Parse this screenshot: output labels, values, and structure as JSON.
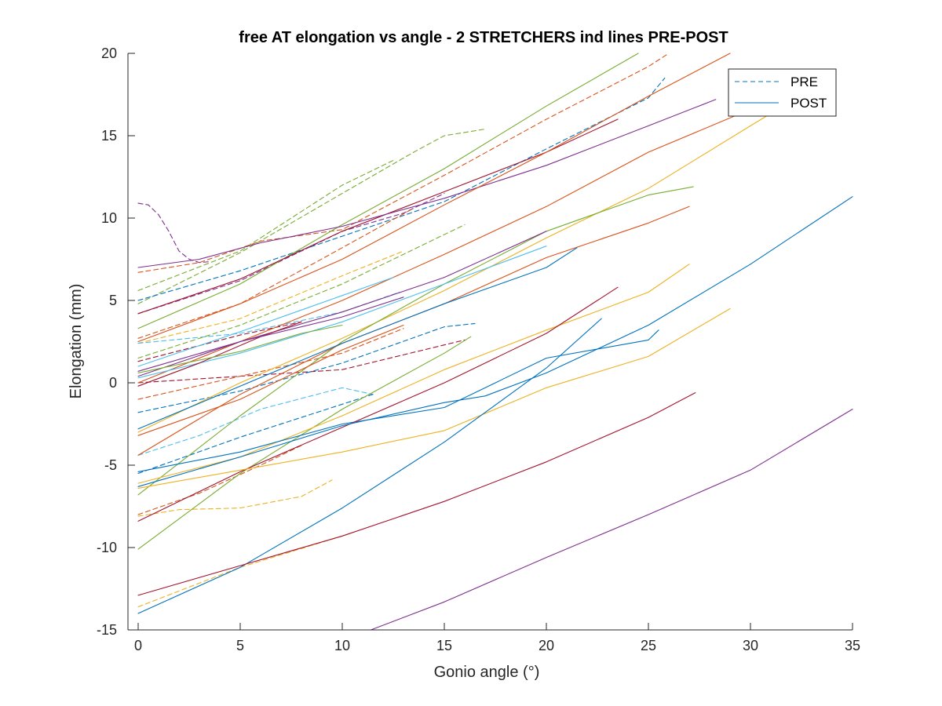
{
  "chart_data": {
    "type": "line",
    "title": "free AT elongation vs angle - 2 STRETCHERS ind lines PRE-POST",
    "xlabel": "Gonio angle (°)",
    "ylabel": "Elongation (mm)",
    "xlim": [
      -0.5,
      35
    ],
    "ylim": [
      -15,
      20
    ],
    "xticks": [
      0,
      5,
      10,
      15,
      20,
      25,
      30,
      35
    ],
    "yticks": [
      -15,
      -10,
      -5,
      0,
      5,
      10,
      15,
      20
    ],
    "grid": false,
    "legend_position": "top-right",
    "legend": [
      {
        "label": "PRE",
        "style": "dashed",
        "color": "#0072BD"
      },
      {
        "label": "POST",
        "style": "solid",
        "color": "#0072BD"
      }
    ],
    "series": [
      {
        "color": "#7E2F8E",
        "style": "dashed",
        "points": [
          [
            0,
            10.9
          ],
          [
            0.5,
            10.8
          ],
          [
            1,
            10.2
          ],
          [
            1.5,
            9.2
          ],
          [
            2,
            8.0
          ],
          [
            2.5,
            7.5
          ],
          [
            3,
            7.3
          ],
          [
            3.5,
            7.35
          ]
        ]
      },
      {
        "color": "#77AC30",
        "style": "dashed",
        "points": [
          [
            0,
            5.6
          ],
          [
            5,
            8.0
          ],
          [
            10,
            12.0
          ],
          [
            12.5,
            13.5
          ]
        ]
      },
      {
        "color": "#77AC30",
        "style": "dashed",
        "points": [
          [
            0,
            4.8
          ],
          [
            5,
            7.9
          ],
          [
            10,
            11.5
          ],
          [
            13.5,
            14.0
          ],
          [
            15,
            15.0
          ],
          [
            17,
            15.4
          ]
        ]
      },
      {
        "color": "#D95319",
        "style": "dashed",
        "points": [
          [
            0,
            6.7
          ],
          [
            3,
            7.3
          ],
          [
            6,
            8.6
          ],
          [
            10,
            9.3
          ],
          [
            15,
            12.6
          ],
          [
            20,
            16.0
          ],
          [
            25,
            19.2
          ],
          [
            26,
            20.0
          ]
        ]
      },
      {
        "color": "#0072BD",
        "style": "dashed",
        "points": [
          [
            0,
            5.0
          ],
          [
            5,
            6.8
          ],
          [
            10,
            8.9
          ],
          [
            15,
            11.0
          ],
          [
            20,
            14.2
          ],
          [
            25,
            17.3
          ],
          [
            25.8,
            18.5
          ]
        ]
      },
      {
        "color": "#7E2F8E",
        "style": "dashed",
        "points": [
          [
            0,
            4.2
          ],
          [
            5,
            6.2
          ],
          [
            10,
            9.2
          ],
          [
            13,
            10.3
          ],
          [
            15,
            11.5
          ]
        ]
      },
      {
        "color": "#D95319",
        "style": "dashed",
        "points": [
          [
            0,
            2.7
          ],
          [
            5,
            4.8
          ],
          [
            10,
            8.2
          ],
          [
            13.5,
            10.6
          ]
        ]
      },
      {
        "color": "#EDB120",
        "style": "dashed",
        "points": [
          [
            0,
            2.4
          ],
          [
            5,
            3.9
          ],
          [
            10,
            6.5
          ],
          [
            13,
            8.0
          ]
        ]
      },
      {
        "color": "#4DBEEE",
        "style": "dashed",
        "points": [
          [
            0,
            2.4
          ],
          [
            5,
            3.0
          ],
          [
            10,
            4.3
          ],
          [
            12.8,
            5.5
          ]
        ]
      },
      {
        "color": "#A2142F",
        "style": "dashed",
        "points": [
          [
            0,
            1.3
          ],
          [
            5,
            2.9
          ],
          [
            8,
            3.7
          ]
        ]
      },
      {
        "color": "#77AC30",
        "style": "dashed",
        "points": [
          [
            0,
            1.5
          ],
          [
            5,
            3.5
          ],
          [
            10,
            6.0
          ],
          [
            15,
            9.0
          ],
          [
            16,
            9.6
          ]
        ]
      },
      {
        "color": "#A2142F",
        "style": "dashed",
        "points": [
          [
            0,
            0.0
          ],
          [
            5,
            0.4
          ],
          [
            10,
            0.8
          ],
          [
            14,
            2.0
          ],
          [
            16,
            2.6
          ]
        ]
      },
      {
        "color": "#0072BD",
        "style": "dashed",
        "points": [
          [
            0,
            -1.8
          ],
          [
            5,
            -0.5
          ],
          [
            10,
            1.2
          ],
          [
            15,
            3.4
          ],
          [
            16.5,
            3.6
          ]
        ]
      },
      {
        "color": "#D95319",
        "style": "dashed",
        "points": [
          [
            0,
            -1.0
          ],
          [
            5,
            0.4
          ],
          [
            10,
            1.8
          ],
          [
            13,
            3.3
          ]
        ]
      },
      {
        "color": "#4DBEEE",
        "style": "dashed",
        "points": [
          [
            0,
            -4.4
          ],
          [
            3,
            -3.2
          ],
          [
            6,
            -1.6
          ],
          [
            10,
            -0.3
          ],
          [
            11.5,
            -0.7
          ]
        ]
      },
      {
        "color": "#0072BD",
        "style": "dashed",
        "points": [
          [
            0,
            -5.5
          ],
          [
            5,
            -3.3
          ],
          [
            10,
            -1.3
          ],
          [
            11.5,
            -0.7
          ]
        ]
      },
      {
        "color": "#EDB120",
        "style": "dashed",
        "points": [
          [
            0,
            -8.1
          ],
          [
            2,
            -7.7
          ],
          [
            5,
            -7.6
          ],
          [
            8,
            -6.9
          ],
          [
            9.5,
            -5.9
          ]
        ]
      },
      {
        "color": "#EDB120",
        "style": "dashed",
        "points": [
          [
            0,
            -13.6
          ],
          [
            5,
            -11.2
          ],
          [
            10,
            -9.3
          ],
          [
            10.5,
            -9.1
          ]
        ]
      },
      {
        "color": "#D95319",
        "style": "dashed",
        "points": [
          [
            0,
            -8.0
          ],
          [
            3,
            -6.7
          ],
          [
            6,
            -5.0
          ],
          [
            8,
            -3.8
          ]
        ]
      },
      {
        "color": "#77AC30",
        "style": "solid",
        "points": [
          [
            0,
            3.3
          ],
          [
            5,
            6.0
          ],
          [
            10,
            9.6
          ],
          [
            15,
            13.0
          ],
          [
            20,
            16.8
          ],
          [
            24.5,
            20.0
          ]
        ]
      },
      {
        "color": "#A2142F",
        "style": "solid",
        "points": [
          [
            0,
            4.2
          ],
          [
            5,
            6.3
          ],
          [
            10,
            9.2
          ],
          [
            15,
            11.6
          ],
          [
            20,
            14.0
          ],
          [
            23.5,
            16.0
          ]
        ]
      },
      {
        "color": "#7E2F8E",
        "style": "solid",
        "points": [
          [
            0,
            7.0
          ],
          [
            3,
            7.5
          ],
          [
            6,
            8.5
          ],
          [
            10,
            9.5
          ],
          [
            15,
            11.2
          ],
          [
            20,
            13.2
          ],
          [
            25,
            15.6
          ],
          [
            28.3,
            17.2
          ]
        ]
      },
      {
        "color": "#D95319",
        "style": "solid",
        "points": [
          [
            0,
            2.5
          ],
          [
            5,
            4.8
          ],
          [
            10,
            7.5
          ],
          [
            15,
            10.8
          ],
          [
            20,
            14.0
          ],
          [
            25,
            17.4
          ],
          [
            29,
            20.0
          ]
        ]
      },
      {
        "color": "#D95319",
        "style": "solid",
        "points": [
          [
            0,
            0.0
          ],
          [
            5,
            2.5
          ],
          [
            10,
            5.0
          ],
          [
            15,
            7.8
          ],
          [
            20,
            10.7
          ],
          [
            25,
            14.0
          ],
          [
            30,
            16.6
          ]
        ]
      },
      {
        "color": "#EDB120",
        "style": "solid",
        "points": [
          [
            0,
            -3.0
          ],
          [
            5,
            0.0
          ],
          [
            10,
            2.7
          ],
          [
            15,
            5.6
          ],
          [
            20,
            8.8
          ],
          [
            25,
            11.8
          ],
          [
            30,
            15.6
          ],
          [
            31.2,
            16.5
          ]
        ]
      },
      {
        "color": "#77AC30",
        "style": "solid",
        "points": [
          [
            0,
            -6.8
          ],
          [
            5,
            -2.0
          ],
          [
            10,
            2.5
          ],
          [
            15,
            6.0
          ],
          [
            20,
            9.2
          ],
          [
            25,
            11.4
          ],
          [
            27.2,
            11.9
          ]
        ]
      },
      {
        "color": "#D95319",
        "style": "solid",
        "points": [
          [
            0,
            -4.4
          ],
          [
            5,
            -0.7
          ],
          [
            10,
            2.4
          ],
          [
            15,
            4.8
          ],
          [
            20,
            7.6
          ],
          [
            25,
            9.7
          ],
          [
            27,
            10.7
          ]
        ]
      },
      {
        "color": "#7E2F8E",
        "style": "solid",
        "points": [
          [
            0,
            0.4
          ],
          [
            5,
            2.5
          ],
          [
            10,
            4.3
          ],
          [
            15,
            6.4
          ],
          [
            20,
            9.2
          ]
        ]
      },
      {
        "color": "#4DBEEE",
        "style": "solid",
        "points": [
          [
            0,
            0.3
          ],
          [
            5,
            1.8
          ],
          [
            10,
            3.7
          ],
          [
            15,
            6.0
          ],
          [
            20,
            8.3
          ]
        ]
      },
      {
        "color": "#4DBEEE",
        "style": "solid",
        "points": [
          [
            0,
            1.0
          ],
          [
            5,
            3.1
          ],
          [
            10,
            5.3
          ],
          [
            12.5,
            6.4
          ]
        ]
      },
      {
        "color": "#A2142F",
        "style": "solid",
        "points": [
          [
            0,
            -0.2
          ],
          [
            3,
            1.2
          ],
          [
            6,
            2.8
          ],
          [
            8,
            3.7
          ]
        ]
      },
      {
        "color": "#0072BD",
        "style": "solid",
        "points": [
          [
            0,
            -2.8
          ],
          [
            5,
            -0.2
          ],
          [
            10,
            2.4
          ],
          [
            15,
            4.8
          ],
          [
            20,
            7.0
          ],
          [
            21.5,
            8.2
          ]
        ]
      },
      {
        "color": "#7E2F8E",
        "style": "solid",
        "points": [
          [
            0,
            0.7
          ],
          [
            5,
            2.5
          ],
          [
            10,
            4.0
          ],
          [
            13,
            5.2
          ]
        ]
      },
      {
        "color": "#77AC30",
        "style": "solid",
        "points": [
          [
            0,
            -10.1
          ],
          [
            5,
            -5.5
          ],
          [
            10,
            -1.6
          ],
          [
            15,
            1.8
          ],
          [
            16.3,
            2.8
          ]
        ]
      },
      {
        "color": "#77AC30",
        "style": "solid",
        "points": [
          [
            0,
            0.6
          ],
          [
            5,
            1.9
          ],
          [
            8,
            3.0
          ],
          [
            10,
            3.5
          ]
        ]
      },
      {
        "color": "#D95319",
        "style": "solid",
        "points": [
          [
            0,
            -3.2
          ],
          [
            5,
            -1.0
          ],
          [
            10,
            2.0
          ],
          [
            13,
            3.5
          ]
        ]
      },
      {
        "color": "#EDB120",
        "style": "solid",
        "points": [
          [
            0,
            -6.1
          ],
          [
            5,
            -4.5
          ],
          [
            10,
            -2.0
          ],
          [
            15,
            0.8
          ],
          [
            20,
            3.2
          ],
          [
            25,
            5.5
          ],
          [
            27,
            7.2
          ]
        ]
      },
      {
        "color": "#0072BD",
        "style": "solid",
        "points": [
          [
            0,
            -5.4
          ],
          [
            5,
            -4.2
          ],
          [
            10,
            -2.5
          ],
          [
            15,
            -1.5
          ],
          [
            20,
            1.5
          ],
          [
            25,
            2.6
          ],
          [
            25.5,
            3.2
          ]
        ]
      },
      {
        "color": "#A2142F",
        "style": "solid",
        "points": [
          [
            0,
            -8.4
          ],
          [
            5,
            -5.4
          ],
          [
            10,
            -2.7
          ],
          [
            15,
            0.0
          ],
          [
            20,
            3.0
          ],
          [
            23.5,
            5.8
          ]
        ]
      },
      {
        "color": "#EDB120",
        "style": "solid",
        "points": [
          [
            0,
            -6.4
          ],
          [
            5,
            -5.3
          ],
          [
            10,
            -4.2
          ],
          [
            15,
            -2.9
          ],
          [
            20,
            -0.3
          ],
          [
            25,
            1.6
          ],
          [
            29,
            4.5
          ]
        ]
      },
      {
        "color": "#0072BD",
        "style": "solid",
        "points": [
          [
            0,
            -6.3
          ],
          [
            5,
            -4.5
          ],
          [
            10,
            -2.6
          ],
          [
            15,
            -1.2
          ],
          [
            17,
            -0.8
          ],
          [
            20,
            0.6
          ],
          [
            25,
            3.5
          ],
          [
            30,
            7.2
          ],
          [
            35,
            11.3
          ]
        ]
      },
      {
        "color": "#0072BD",
        "style": "solid",
        "points": [
          [
            0,
            -14.0
          ],
          [
            5,
            -11.2
          ],
          [
            10,
            -7.6
          ],
          [
            15,
            -3.6
          ],
          [
            20,
            0.9
          ],
          [
            22.7,
            3.9
          ]
        ]
      },
      {
        "color": "#A2142F",
        "style": "solid",
        "points": [
          [
            0,
            -12.9
          ],
          [
            5,
            -11.1
          ],
          [
            10,
            -9.3
          ],
          [
            15,
            -7.2
          ],
          [
            20,
            -4.8
          ],
          [
            25,
            -2.1
          ],
          [
            27.3,
            -0.6
          ]
        ]
      },
      {
        "color": "#7E2F8E",
        "style": "solid",
        "points": [
          [
            11.4,
            -15.0
          ],
          [
            15,
            -13.3
          ],
          [
            20,
            -10.6
          ],
          [
            25,
            -8.0
          ],
          [
            30,
            -5.3
          ],
          [
            35,
            -1.6
          ]
        ]
      }
    ]
  }
}
